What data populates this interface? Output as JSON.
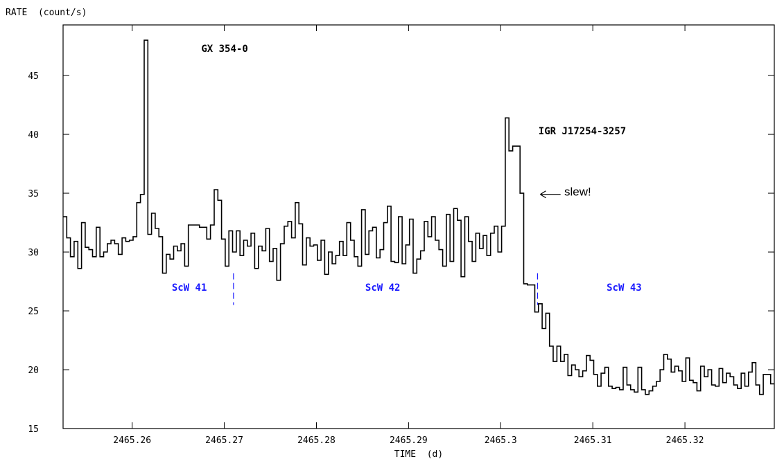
{
  "chart_data": {
    "type": "line",
    "step": true,
    "ylabel": "RATE  (count/s)",
    "xlabel": "TIME  (d)",
    "xlim": [
      2465.2525,
      2465.3297
    ],
    "ylim": [
      15,
      49.3
    ],
    "xticks": [
      {
        "value": 2465.26,
        "label": "2465.26"
      },
      {
        "value": 2465.27,
        "label": "2465.27"
      },
      {
        "value": 2465.28,
        "label": "2465.28"
      },
      {
        "value": 2465.29,
        "label": "2465.29"
      },
      {
        "value": 2465.3,
        "label": "2465.3"
      },
      {
        "value": 2465.31,
        "label": "2465.31"
      },
      {
        "value": 2465.32,
        "label": "2465.32"
      }
    ],
    "yticks": [
      {
        "value": 15,
        "label": "15"
      },
      {
        "value": 20,
        "label": "20"
      },
      {
        "value": 25,
        "label": "25"
      },
      {
        "value": 30,
        "label": "30"
      },
      {
        "value": 35,
        "label": "35"
      },
      {
        "value": 40,
        "label": "40"
      },
      {
        "value": 45,
        "label": "45"
      }
    ],
    "series": [
      {
        "x": [
          2465.2525,
          2465.2529,
          2465.2533,
          2465.2537,
          2465.2541,
          2465.2545,
          2465.2549,
          2465.2553,
          2465.2557,
          2465.2561,
          2465.2565,
          2465.2569,
          2465.2573,
          2465.2577,
          2465.2581,
          2465.2585,
          2465.2589,
          2465.2593,
          2465.2597,
          2465.2601,
          2465.2605,
          2465.2609,
          2465.2613,
          2465.2617,
          2465.2621,
          2465.2625,
          2465.2629,
          2465.2633,
          2465.2637,
          2465.2641,
          2465.2645,
          2465.2649,
          2465.2653,
          2465.2657,
          2465.2661,
          2465.2665,
          2465.2669,
          2465.2673,
          2465.2677,
          2465.2681,
          2465.2685,
          2465.2689,
          2465.2693,
          2465.2697,
          2465.2701,
          2465.2705,
          2465.2709,
          2465.2713,
          2465.2717,
          2465.2721,
          2465.2725,
          2465.2729,
          2465.2733,
          2465.2737,
          2465.2741,
          2465.2745,
          2465.2749,
          2465.2753,
          2465.2757,
          2465.2761,
          2465.2765,
          2465.2769,
          2465.2773,
          2465.2777,
          2465.2781,
          2465.2785,
          2465.2789,
          2465.2793,
          2465.2797,
          2465.2801,
          2465.2805,
          2465.2809,
          2465.2813,
          2465.2817,
          2465.2821,
          2465.2825,
          2465.2829,
          2465.2833,
          2465.2837,
          2465.2841,
          2465.2845,
          2465.2849,
          2465.2853,
          2465.2857,
          2465.2861,
          2465.2865,
          2465.2869,
          2465.2873,
          2465.2877,
          2465.2881,
          2465.2885,
          2465.2889,
          2465.2893,
          2465.2897,
          2465.2901,
          2465.2905,
          2465.2909,
          2465.2913,
          2465.2917,
          2465.2921,
          2465.2925,
          2465.2929,
          2465.2933,
          2465.2937,
          2465.2941,
          2465.2945,
          2465.2949,
          2465.2953,
          2465.2957,
          2465.2961,
          2465.2965,
          2465.2969,
          2465.2973,
          2465.2977,
          2465.2981,
          2465.2985,
          2465.2989,
          2465.2993,
          2465.2997,
          2465.3001,
          2465.3005,
          2465.3009,
          2465.3013,
          2465.3017,
          2465.3021,
          2465.3025,
          2465.3029,
          2465.3033,
          2465.3037,
          2465.3041,
          2465.3045,
          2465.3049,
          2465.3053,
          2465.3057,
          2465.3061,
          2465.3065,
          2465.3069,
          2465.3073,
          2465.3077,
          2465.3081,
          2465.3085,
          2465.3089,
          2465.3093,
          2465.3097,
          2465.3101,
          2465.3105,
          2465.3109,
          2465.3113,
          2465.3117,
          2465.3121,
          2465.3125,
          2465.3129,
          2465.3133,
          2465.3137,
          2465.3141,
          2465.3145,
          2465.3149,
          2465.3153,
          2465.3157,
          2465.3161,
          2465.3165,
          2465.3169,
          2465.3173,
          2465.3177,
          2465.3181,
          2465.3185,
          2465.3189,
          2465.3193,
          2465.3197,
          2465.3201,
          2465.3205,
          2465.3209,
          2465.3213,
          2465.3217,
          2465.3221,
          2465.3225,
          2465.3229,
          2465.3233,
          2465.3237,
          2465.3241,
          2465.3245,
          2465.3249,
          2465.3253,
          2465.3257,
          2465.3261,
          2465.3265,
          2465.3269,
          2465.3273,
          2465.3277,
          2465.3281,
          2465.3285,
          2465.3289,
          2465.3293
        ],
        "y": [
          33.0,
          31.2,
          29.6,
          30.9,
          28.6,
          32.5,
          30.4,
          30.2,
          29.6,
          32.1,
          29.6,
          30.0,
          30.7,
          31.0,
          30.7,
          29.8,
          31.2,
          30.9,
          31.0,
          31.3,
          34.2,
          34.9,
          48.0,
          31.5,
          33.3,
          32.0,
          31.3,
          28.2,
          29.8,
          29.4,
          30.5,
          30.1,
          30.7,
          28.8,
          32.3,
          32.3,
          32.3,
          32.1,
          32.1,
          31.1,
          32.3,
          35.3,
          34.4,
          31.1,
          28.8,
          31.8,
          30.0,
          31.8,
          29.7,
          31.0,
          30.5,
          31.6,
          28.6,
          30.5,
          30.1,
          32.0,
          29.2,
          30.3,
          27.6,
          30.7,
          32.2,
          32.6,
          31.2,
          34.2,
          32.4,
          28.9,
          31.2,
          30.5,
          30.6,
          29.3,
          31.0,
          28.1,
          30.0,
          29.0,
          29.7,
          30.9,
          29.7,
          32.5,
          31.0,
          29.6,
          28.8,
          33.6,
          29.8,
          31.8,
          32.1,
          29.5,
          30.2,
          32.5,
          33.9,
          29.2,
          29.1,
          33.0,
          29.0,
          30.6,
          32.8,
          28.2,
          29.4,
          30.1,
          32.6,
          31.3,
          33.0,
          31.0,
          30.2,
          28.8,
          33.2,
          29.2,
          33.7,
          32.7,
          27.9,
          33.0,
          30.9,
          29.2,
          31.6,
          30.3,
          31.4,
          29.7,
          31.6,
          32.2,
          30.0,
          32.2,
          41.4,
          38.6,
          39.0,
          39.0,
          35.0,
          27.3,
          27.2,
          27.2,
          24.9,
          25.6,
          23.5,
          24.8,
          22.0,
          20.7,
          22.0,
          20.7,
          21.3,
          19.5,
          20.4,
          20.0,
          19.4,
          19.9,
          21.2,
          20.8,
          19.6,
          18.6,
          19.7,
          20.2,
          18.6,
          18.4,
          18.5,
          18.3,
          20.2,
          18.7,
          18.3,
          18.1,
          20.2,
          18.3,
          17.9,
          18.2,
          18.6,
          19.0,
          20.0,
          21.3,
          20.9,
          19.8,
          20.3,
          19.9,
          19.0,
          21.0,
          19.1,
          18.9,
          18.2,
          20.3,
          19.4,
          20.0,
          18.7,
          18.6,
          20.1,
          18.9,
          19.7,
          19.4,
          18.7,
          18.4,
          19.7,
          18.6,
          19.8,
          20.6,
          18.7,
          17.9,
          19.6,
          19.6,
          18.8
        ],
        "color": "#000000"
      }
    ],
    "annotations": [
      {
        "key": "gx",
        "text": "GX 354-0",
        "x": 2465.2675,
        "y": 47.0,
        "style": "mono"
      },
      {
        "key": "igr",
        "text": "IGR J17254-3257",
        "x": 2465.3041,
        "y": 40.0,
        "style": "mono"
      },
      {
        "key": "slew",
        "text": "slew!",
        "x": 2465.3069,
        "y": 34.8,
        "style": "sans"
      },
      {
        "key": "scw41",
        "text": "ScW 41",
        "x": 2465.2643,
        "y": 26.7,
        "style": "mono-blue"
      },
      {
        "key": "scw42",
        "text": "ScW 42",
        "x": 2465.2853,
        "y": 26.7,
        "style": "mono-blue"
      },
      {
        "key": "scw43",
        "text": "ScW 43",
        "x": 2465.3115,
        "y": 26.7,
        "style": "mono-blue"
      }
    ],
    "slew_arrow": {
      "x_from": 2465.3065,
      "x_to": 2465.3043,
      "y": 34.9
    },
    "pointing_boundaries": [
      {
        "x": 2465.271,
        "y_range": [
          25.5,
          28.2
        ]
      },
      {
        "x": 2465.304,
        "y_range": [
          25.5,
          28.2
        ]
      }
    ],
    "colors": {
      "line": "#000000",
      "scw_label": "#1a1aff",
      "boundary": "#1a1aff"
    },
    "grid": false
  }
}
